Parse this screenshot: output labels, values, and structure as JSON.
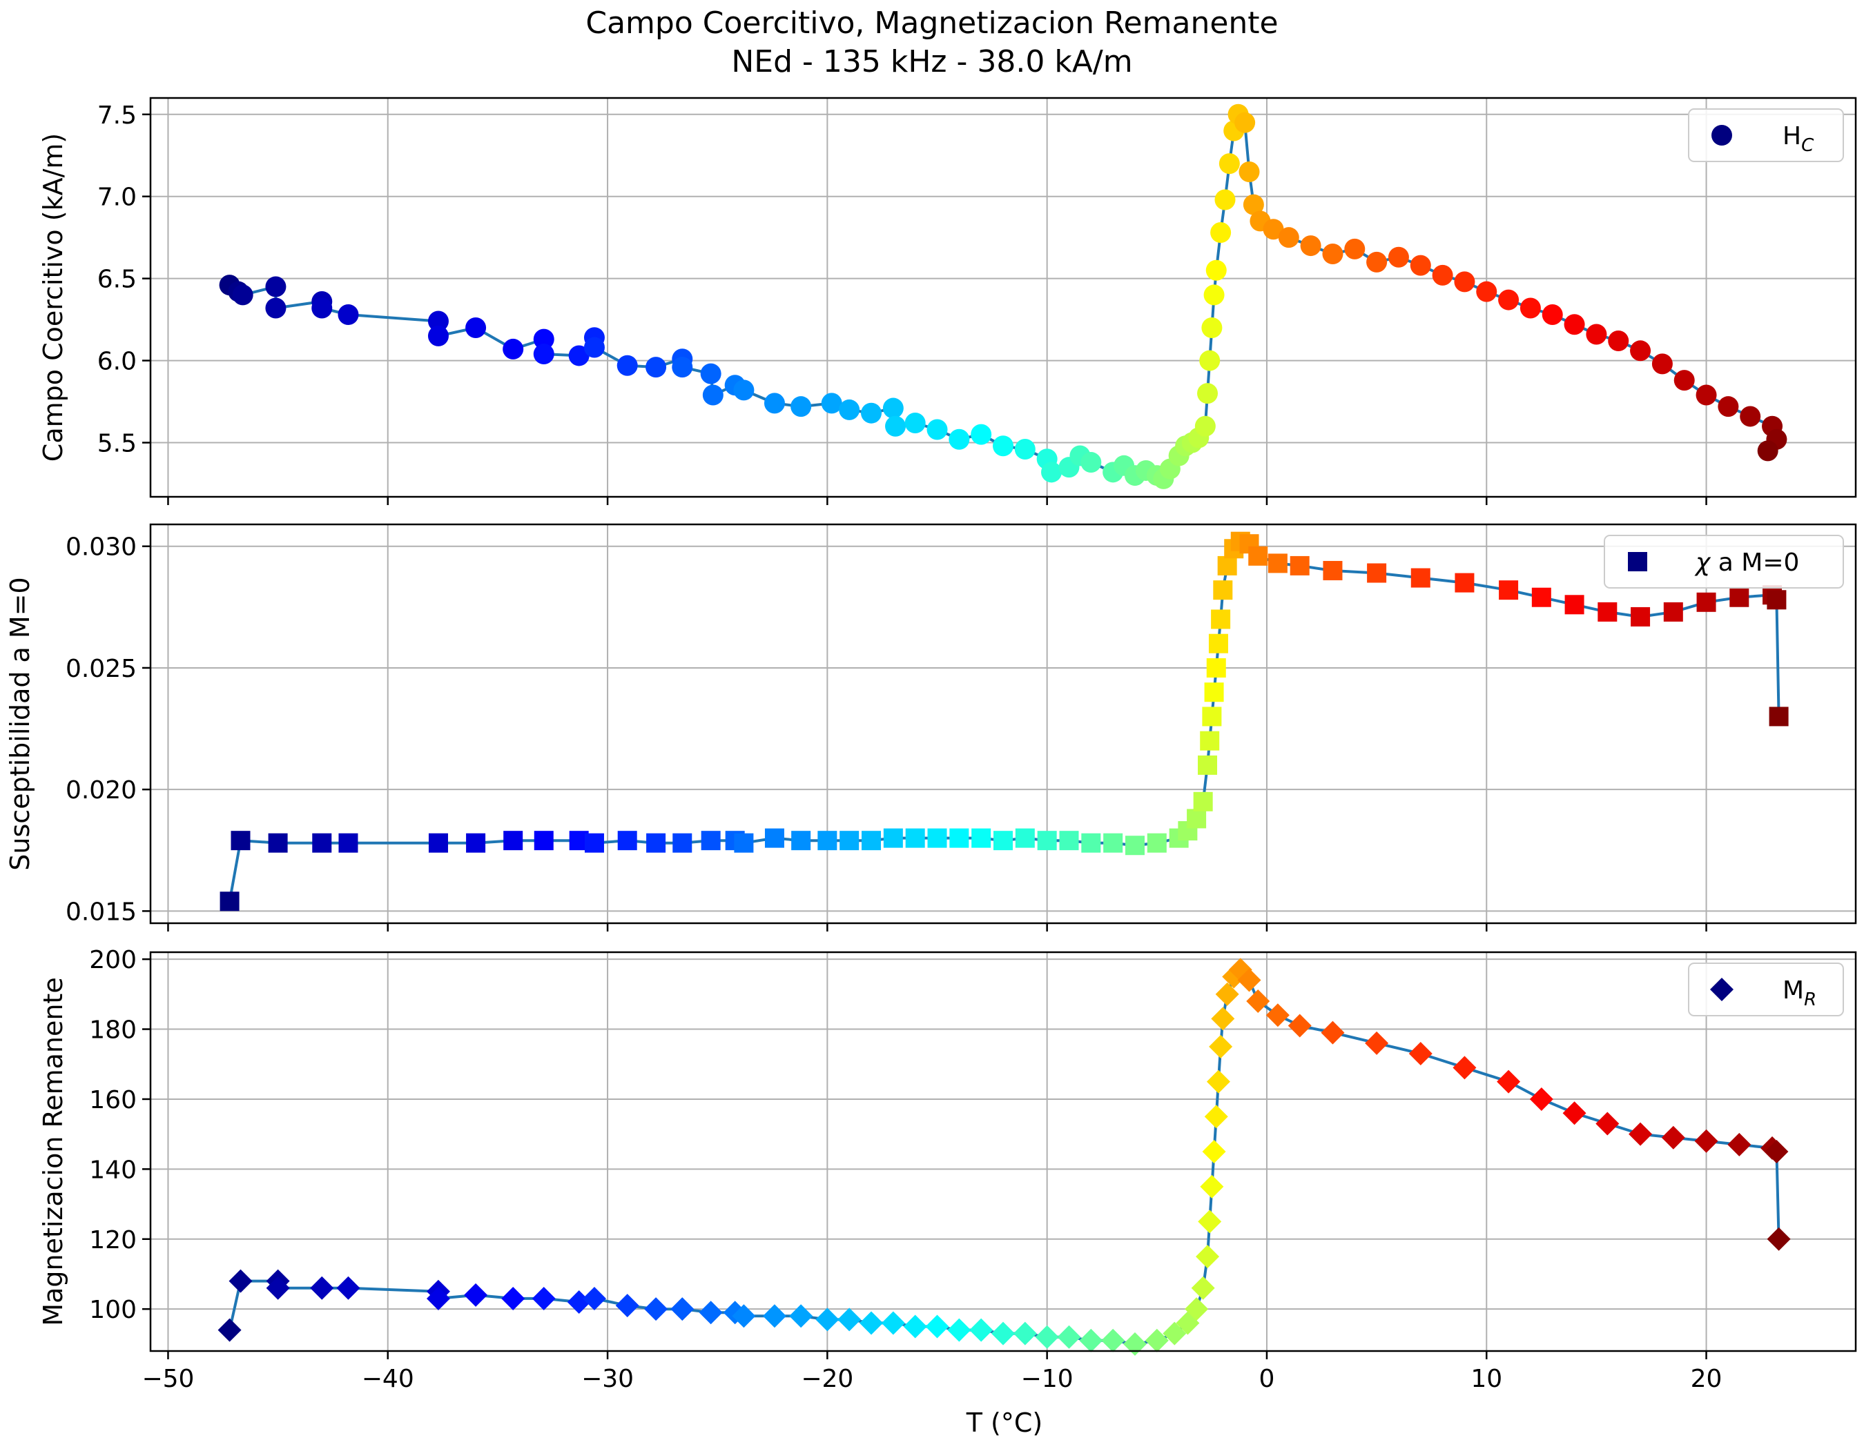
{
  "figure": {
    "title_line1": "Campo Coercitivo, Magnetizacion Remanente",
    "title_line2": "NEd - 135 kHz - 38.0 kA/m",
    "xlabel": "T (°C)",
    "x_ticks": [
      "−50",
      "−40",
      "−30",
      "−20",
      "−10",
      "0",
      "10",
      "20"
    ]
  },
  "chart_data": [
    {
      "type": "scatter",
      "ylabel": "Campo Coercitivo (kA/m)",
      "legend": {
        "symbol": "H",
        "subscript": "C",
        "placement": "top-right",
        "marker": "circle"
      },
      "xlim": [
        -50.8,
        26.8
      ],
      "ylim": [
        5.17,
        7.6
      ],
      "y_ticks": [
        "5.5",
        "6.0",
        "6.5",
        "7.0",
        "7.5"
      ],
      "grid": true,
      "colormap": "jet",
      "line_color": "#1f77b4",
      "points": [
        [
          -47.2,
          6.46
        ],
        [
          -46.8,
          6.42
        ],
        [
          -46.6,
          6.4
        ],
        [
          -45.1,
          6.45
        ],
        [
          -45.1,
          6.32
        ],
        [
          -43,
          6.36
        ],
        [
          -43,
          6.32
        ],
        [
          -41.8,
          6.28
        ],
        [
          -37.7,
          6.24
        ],
        [
          -37.7,
          6.15
        ],
        [
          -36,
          6.2
        ],
        [
          -34.3,
          6.07
        ],
        [
          -32.9,
          6.13
        ],
        [
          -32.9,
          6.04
        ],
        [
          -31.3,
          6.03
        ],
        [
          -30.6,
          6.14
        ],
        [
          -30.6,
          6.08
        ],
        [
          -29.1,
          5.97
        ],
        [
          -27.8,
          5.96
        ],
        [
          -26.6,
          6.01
        ],
        [
          -26.6,
          5.96
        ],
        [
          -25.3,
          5.92
        ],
        [
          -25.2,
          5.79
        ],
        [
          -24.2,
          5.85
        ],
        [
          -23.8,
          5.82
        ],
        [
          -22.4,
          5.74
        ],
        [
          -21.2,
          5.72
        ],
        [
          -19.8,
          5.74
        ],
        [
          -19,
          5.7
        ],
        [
          -18,
          5.68
        ],
        [
          -17,
          5.71
        ],
        [
          -16.9,
          5.6
        ],
        [
          -16,
          5.62
        ],
        [
          -15,
          5.58
        ],
        [
          -14,
          5.52
        ],
        [
          -13,
          5.55
        ],
        [
          -12,
          5.48
        ],
        [
          -11,
          5.46
        ],
        [
          -10,
          5.4
        ],
        [
          -9.8,
          5.32
        ],
        [
          -9,
          5.35
        ],
        [
          -8.5,
          5.42
        ],
        [
          -8,
          5.38
        ],
        [
          -7,
          5.32
        ],
        [
          -6.5,
          5.36
        ],
        [
          -6,
          5.3
        ],
        [
          -5.5,
          5.33
        ],
        [
          -5,
          5.3
        ],
        [
          -4.7,
          5.28
        ],
        [
          -4.4,
          5.34
        ],
        [
          -4,
          5.42
        ],
        [
          -3.7,
          5.48
        ],
        [
          -3.4,
          5.5
        ],
        [
          -3.1,
          5.53
        ],
        [
          -2.8,
          5.6
        ],
        [
          -2.7,
          5.8
        ],
        [
          -2.6,
          6.0
        ],
        [
          -2.5,
          6.2
        ],
        [
          -2.4,
          6.4
        ],
        [
          -2.3,
          6.55
        ],
        [
          -2.1,
          6.78
        ],
        [
          -1.9,
          6.98
        ],
        [
          -1.7,
          7.2
        ],
        [
          -1.5,
          7.4
        ],
        [
          -1.3,
          7.5
        ],
        [
          -1.0,
          7.45
        ],
        [
          -0.8,
          7.15
        ],
        [
          -0.6,
          6.95
        ],
        [
          -0.3,
          6.85
        ],
        [
          0.3,
          6.8
        ],
        [
          1,
          6.75
        ],
        [
          2,
          6.7
        ],
        [
          3,
          6.65
        ],
        [
          4,
          6.68
        ],
        [
          5,
          6.6
        ],
        [
          6,
          6.63
        ],
        [
          7,
          6.58
        ],
        [
          8,
          6.52
        ],
        [
          9,
          6.48
        ],
        [
          10,
          6.42
        ],
        [
          11,
          6.37
        ],
        [
          12,
          6.32
        ],
        [
          13,
          6.28
        ],
        [
          14,
          6.22
        ],
        [
          15,
          6.16
        ],
        [
          16,
          6.12
        ],
        [
          17,
          6.06
        ],
        [
          18,
          5.98
        ],
        [
          19,
          5.88
        ],
        [
          20,
          5.79
        ],
        [
          21,
          5.72
        ],
        [
          22,
          5.66
        ],
        [
          23,
          5.6
        ],
        [
          23.2,
          5.52
        ],
        [
          22.8,
          5.45
        ]
      ]
    },
    {
      "type": "scatter",
      "ylabel": "Susceptibilidad a M=0",
      "legend": {
        "symbol": "χ",
        "text": " a M=0",
        "placement": "top-right",
        "marker": "square"
      },
      "xlim": [
        -50.8,
        26.8
      ],
      "ylim": [
        0.0145,
        0.0309
      ],
      "y_ticks": [
        "0.015",
        "0.020",
        "0.025",
        "0.030"
      ],
      "grid": true,
      "colormap": "jet",
      "line_color": "#1f77b4",
      "points": [
        [
          -47.2,
          0.0154
        ],
        [
          -46.7,
          0.0179
        ],
        [
          -45,
          0.0178
        ],
        [
          -43,
          0.0178
        ],
        [
          -41.8,
          0.0178
        ],
        [
          -37.7,
          0.0178
        ],
        [
          -36,
          0.0178
        ],
        [
          -34.3,
          0.0179
        ],
        [
          -32.9,
          0.0179
        ],
        [
          -31.3,
          0.0179
        ],
        [
          -30.6,
          0.0178
        ],
        [
          -29.1,
          0.0179
        ],
        [
          -27.8,
          0.0178
        ],
        [
          -26.6,
          0.0178
        ],
        [
          -25.3,
          0.0179
        ],
        [
          -24.2,
          0.0179
        ],
        [
          -23.8,
          0.0178
        ],
        [
          -22.4,
          0.018
        ],
        [
          -21.2,
          0.0179
        ],
        [
          -20,
          0.0179
        ],
        [
          -19,
          0.0179
        ],
        [
          -18,
          0.0179
        ],
        [
          -17,
          0.018
        ],
        [
          -16,
          0.018
        ],
        [
          -15,
          0.018
        ],
        [
          -14,
          0.018
        ],
        [
          -13,
          0.018
        ],
        [
          -12,
          0.0179
        ],
        [
          -11,
          0.018
        ],
        [
          -10,
          0.0179
        ],
        [
          -9,
          0.0179
        ],
        [
          -8,
          0.0178
        ],
        [
          -7,
          0.0178
        ],
        [
          -6,
          0.0177
        ],
        [
          -5,
          0.0178
        ],
        [
          -4,
          0.018
        ],
        [
          -3.6,
          0.0183
        ],
        [
          -3.2,
          0.0188
        ],
        [
          -2.9,
          0.0195
        ],
        [
          -2.7,
          0.021
        ],
        [
          -2.6,
          0.022
        ],
        [
          -2.5,
          0.023
        ],
        [
          -2.4,
          0.024
        ],
        [
          -2.3,
          0.025
        ],
        [
          -2.2,
          0.026
        ],
        [
          -2.1,
          0.027
        ],
        [
          -2.0,
          0.0282
        ],
        [
          -1.8,
          0.0292
        ],
        [
          -1.5,
          0.0299
        ],
        [
          -1.2,
          0.0302
        ],
        [
          -0.8,
          0.0301
        ],
        [
          -0.4,
          0.0296
        ],
        [
          0.5,
          0.0293
        ],
        [
          1.5,
          0.0292
        ],
        [
          3,
          0.029
        ],
        [
          5,
          0.0289
        ],
        [
          7,
          0.0287
        ],
        [
          9,
          0.0285
        ],
        [
          11,
          0.0282
        ],
        [
          12.5,
          0.0279
        ],
        [
          14,
          0.0276
        ],
        [
          15.5,
          0.0273
        ],
        [
          17,
          0.0271
        ],
        [
          18.5,
          0.0273
        ],
        [
          20,
          0.0277
        ],
        [
          21.5,
          0.0279
        ],
        [
          23,
          0.028
        ],
        [
          23.2,
          0.0278
        ],
        [
          23.3,
          0.023
        ]
      ]
    },
    {
      "type": "scatter",
      "ylabel": "Magnetizacion Remanente",
      "legend": {
        "symbol": "M",
        "subscript": "R",
        "placement": "top-right",
        "marker": "diamond"
      },
      "xlim": [
        -50.8,
        26.8
      ],
      "ylim": [
        88,
        202
      ],
      "y_ticks": [
        "100",
        "120",
        "140",
        "160",
        "180",
        "200"
      ],
      "grid": true,
      "colormap": "jet",
      "line_color": "#1f77b4",
      "points": [
        [
          -47.2,
          94
        ],
        [
          -46.7,
          108
        ],
        [
          -45,
          108
        ],
        [
          -45,
          106
        ],
        [
          -43,
          106
        ],
        [
          -41.8,
          106
        ],
        [
          -37.7,
          105
        ],
        [
          -37.7,
          103
        ],
        [
          -36,
          104
        ],
        [
          -34.3,
          103
        ],
        [
          -32.9,
          103
        ],
        [
          -31.3,
          102
        ],
        [
          -30.6,
          103
        ],
        [
          -29.1,
          101
        ],
        [
          -27.8,
          100
        ],
        [
          -26.6,
          100
        ],
        [
          -25.3,
          99
        ],
        [
          -24.2,
          99
        ],
        [
          -23.8,
          98
        ],
        [
          -22.4,
          98
        ],
        [
          -21.2,
          98
        ],
        [
          -20,
          97
        ],
        [
          -19,
          97
        ],
        [
          -18,
          96
        ],
        [
          -17,
          96
        ],
        [
          -16,
          95
        ],
        [
          -15,
          95
        ],
        [
          -14,
          94
        ],
        [
          -13,
          94
        ],
        [
          -12,
          93
        ],
        [
          -11,
          93
        ],
        [
          -10,
          92
        ],
        [
          -9,
          92
        ],
        [
          -8,
          91
        ],
        [
          -7,
          91
        ],
        [
          -6,
          90
        ],
        [
          -5,
          91
        ],
        [
          -4.2,
          93
        ],
        [
          -3.6,
          96
        ],
        [
          -3.2,
          100
        ],
        [
          -2.9,
          106
        ],
        [
          -2.7,
          115
        ],
        [
          -2.6,
          125
        ],
        [
          -2.5,
          135
        ],
        [
          -2.4,
          145
        ],
        [
          -2.3,
          155
        ],
        [
          -2.2,
          165
        ],
        [
          -2.1,
          175
        ],
        [
          -2.0,
          183
        ],
        [
          -1.8,
          190
        ],
        [
          -1.5,
          195
        ],
        [
          -1.2,
          197
        ],
        [
          -0.8,
          194
        ],
        [
          -0.4,
          188
        ],
        [
          0.5,
          184
        ],
        [
          1.5,
          181
        ],
        [
          3,
          179
        ],
        [
          5,
          176
        ],
        [
          7,
          173
        ],
        [
          9,
          169
        ],
        [
          11,
          165
        ],
        [
          12.5,
          160
        ],
        [
          14,
          156
        ],
        [
          15.5,
          153
        ],
        [
          17,
          150
        ],
        [
          18.5,
          149
        ],
        [
          20,
          148
        ],
        [
          21.5,
          147
        ],
        [
          23,
          146
        ],
        [
          23.2,
          145
        ],
        [
          23.3,
          120
        ]
      ]
    }
  ]
}
